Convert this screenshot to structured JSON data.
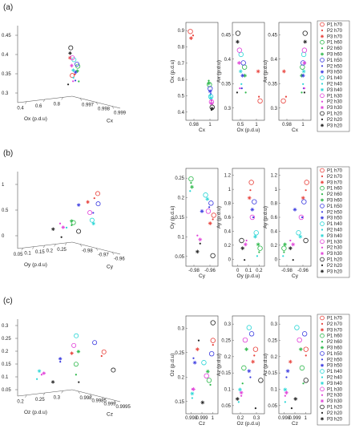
{
  "series_style": [
    {
      "name": "P1 h70",
      "color": "#e8403a",
      "marker": "circle"
    },
    {
      "name": "P2 h70",
      "color": "#e8403a",
      "marker": "dot"
    },
    {
      "name": "P3 h70",
      "color": "#e8403a",
      "marker": "star"
    },
    {
      "name": "P1 h60",
      "color": "#2db84b",
      "marker": "circle"
    },
    {
      "name": "P2 h60",
      "color": "#2db84b",
      "marker": "dot"
    },
    {
      "name": "P3 h60",
      "color": "#2db84b",
      "marker": "star"
    },
    {
      "name": "P1 h50",
      "color": "#3a3ae0",
      "marker": "circle"
    },
    {
      "name": "P2 h50",
      "color": "#3a3ae0",
      "marker": "dot"
    },
    {
      "name": "P3 h50",
      "color": "#3a3ae0",
      "marker": "star"
    },
    {
      "name": "P1 h40",
      "color": "#2ad6d6",
      "marker": "circle"
    },
    {
      "name": "P2 h40",
      "color": "#2ad6d6",
      "marker": "dot"
    },
    {
      "name": "P3 h40",
      "color": "#2ad6d6",
      "marker": "star"
    },
    {
      "name": "P1 h30",
      "color": "#e040d8",
      "marker": "circle"
    },
    {
      "name": "P2 h30",
      "color": "#e040d8",
      "marker": "dot"
    },
    {
      "name": "P3 h30",
      "color": "#e040d8",
      "marker": "star"
    },
    {
      "name": "P1 h20",
      "color": "#222222",
      "marker": "circle"
    },
    {
      "name": "P2 h20",
      "color": "#222222",
      "marker": "dot"
    },
    {
      "name": "P3 h20",
      "color": "#222222",
      "marker": "star"
    }
  ],
  "chart_data": [
    {
      "type": "scatter",
      "panel_label": "(a)",
      "title": "",
      "axes3d": {
        "axis_labels": {
          "x": "Cx",
          "y": "Ox (p.d.u)",
          "z": "Ax (p.d.u)"
        },
        "x_ticks": [
          "0.997",
          "0.998",
          "0.999"
        ],
        "y_ticks": [
          "0.4",
          "0.6",
          "0.8"
        ],
        "z_ticks": [
          "0.3",
          "0.35",
          "0.4",
          "0.45"
        ]
      },
      "projections": [
        {
          "xlabel": "Cx",
          "ylabel": "Ox (p.d.u)",
          "xlim": [
            0.9965,
            1.0005
          ],
          "ylim": [
            0.3,
            1.0
          ],
          "xticks": [
            "0.98",
            "1"
          ],
          "yticks": [
            "0.4",
            "0.5",
            "0.6",
            "0.7",
            "0.8",
            "0.9"
          ]
        },
        {
          "xlabel": "Ox (p.d.u)",
          "ylabel": "Ax (p.d.u)",
          "xlim": [
            0.3,
            1.0
          ],
          "ylim": [
            0.25,
            0.47
          ],
          "xticks": [
            "0.5",
            "1"
          ],
          "yticks": [
            "0.3",
            "0.35",
            "0.4",
            "0.45"
          ]
        },
        {
          "xlabel": "Cx",
          "ylabel": "Ax (p.d.u)",
          "xlim": [
            0.9965,
            1.0005
          ],
          "ylim": [
            0.25,
            0.47
          ],
          "xticks": [
            "0.98",
            "1"
          ],
          "yticks": [
            "0.3",
            "0.35",
            "0.4",
            "0.45"
          ]
        }
      ],
      "series": [
        {
          "name": "P1 h70",
          "x": [
            0.9968
          ],
          "y": [
            0.95
          ],
          "z": [
            0.29
          ]
        },
        {
          "name": "P2 h70",
          "x": [
            0.9972
          ],
          "y": [
            0.92
          ],
          "z": [
            0.3
          ]
        },
        {
          "name": "P3 h70",
          "x": [
            0.9969
          ],
          "y": [
            0.9
          ],
          "z": [
            0.36
          ]
        },
        {
          "name": "P1 h60",
          "x": [
            0.9996
          ],
          "y": [
            0.55
          ],
          "z": [
            0.37
          ]
        },
        {
          "name": "P2 h60",
          "x": [
            0.9995
          ],
          "y": [
            0.58
          ],
          "z": [
            0.31
          ]
        },
        {
          "name": "P3 h60",
          "x": [
            0.9995
          ],
          "y": [
            0.56
          ],
          "z": [
            0.35
          ]
        },
        {
          "name": "P1 h50",
          "x": [
            0.9997
          ],
          "y": [
            0.52
          ],
          "z": [
            0.38
          ]
        },
        {
          "name": "P2 h50",
          "x": [
            0.9998
          ],
          "y": [
            0.48
          ],
          "z": [
            0.32
          ]
        },
        {
          "name": "P3 h50",
          "x": [
            0.9997
          ],
          "y": [
            0.5
          ],
          "z": [
            0.35
          ]
        },
        {
          "name": "P1 h40",
          "x": [
            0.9998
          ],
          "y": [
            0.46
          ],
          "z": [
            0.4
          ]
        },
        {
          "name": "P2 h40",
          "x": [
            0.9997
          ],
          "y": [
            0.47
          ],
          "z": [
            0.33
          ]
        },
        {
          "name": "P3 h40",
          "x": [
            0.9998
          ],
          "y": [
            0.45
          ],
          "z": [
            0.36
          ]
        },
        {
          "name": "P1 h30",
          "x": [
            0.9999
          ],
          "y": [
            0.42
          ],
          "z": [
            0.41
          ]
        },
        {
          "name": "P2 h30",
          "x": [
            0.9999
          ],
          "y": [
            0.43
          ],
          "z": [
            0.32
          ]
        },
        {
          "name": "P3 h30",
          "x": [
            0.9999
          ],
          "y": [
            0.41
          ],
          "z": [
            0.38
          ]
        },
        {
          "name": "P1 h20",
          "x": [
            1.0
          ],
          "y": [
            0.38
          ],
          "z": [
            0.45
          ]
        },
        {
          "name": "P2 h20",
          "x": [
            0.9999
          ],
          "y": [
            0.36
          ],
          "z": [
            0.31
          ]
        },
        {
          "name": "P3 h20",
          "x": [
            1.0
          ],
          "y": [
            0.37
          ],
          "z": [
            0.43
          ]
        }
      ]
    },
    {
      "type": "scatter",
      "panel_label": "(b)",
      "title": "",
      "axes3d": {
        "axis_labels": {
          "x": "Cy",
          "y": "Oy (p.d.u)",
          "z": "Ay (p.d.u)"
        },
        "x_ticks": [
          "-0.98",
          "-0.97",
          "-0.96"
        ],
        "y_ticks": [
          "0.05",
          "0.1",
          "0.15",
          "0.2",
          "0.25"
        ],
        "z_ticks": [
          "0",
          "0.5",
          "1"
        ]
      },
      "projections": [
        {
          "xlabel": "Cy",
          "ylabel": "Oy (p.d.u)",
          "xlim": [
            -0.985,
            -0.955
          ],
          "ylim": [
            0.05,
            0.28
          ],
          "xticks": [
            "-0.98",
            "-0.96"
          ],
          "yticks": [
            "0.05",
            "0.1",
            "0.15",
            "0.2",
            "0.25"
          ]
        },
        {
          "xlabel": "Oy (p.d.u)",
          "ylabel": "Ay (p.d.u)",
          "xlim": [
            0.0,
            0.28
          ],
          "ylim": [
            0.0,
            1.2
          ],
          "xticks": [
            "0",
            "0.1",
            "0.2"
          ],
          "yticks": [
            "0",
            "0.2",
            "0.4",
            "0.6",
            "0.8",
            "1",
            "1.2"
          ]
        },
        {
          "xlabel": "Cy",
          "ylabel": "Ay (p.d.u)",
          "xlim": [
            -0.985,
            -0.955
          ],
          "ylim": [
            0.0,
            1.2
          ],
          "xticks": [
            "-0.98",
            "-0.96"
          ],
          "yticks": [
            "0",
            "0.2",
            "0.4",
            "0.6",
            "0.8",
            "1",
            "1.2"
          ]
        }
      ],
      "series": [
        {
          "name": "P1 h70",
          "x": [
            -0.957
          ],
          "y": [
            0.17
          ],
          "z": [
            1.05
          ]
        },
        {
          "name": "P2 h70",
          "x": [
            -0.958
          ],
          "y": [
            0.16
          ],
          "z": [
            0.95
          ]
        },
        {
          "name": "P3 h70",
          "x": [
            -0.961
          ],
          "y": [
            0.15
          ],
          "z": [
            0.85
          ]
        },
        {
          "name": "P1 h60",
          "x": [
            -0.982
          ],
          "y": [
            0.26
          ],
          "z": [
            0.2
          ]
        },
        {
          "name": "P2 h60",
          "x": [
            -0.982
          ],
          "y": [
            0.25
          ],
          "z": [
            0.15
          ]
        },
        {
          "name": "P3 h60",
          "x": [
            -0.981
          ],
          "y": [
            0.24
          ],
          "z": [
            0.25
          ]
        },
        {
          "name": "P1 h50",
          "x": [
            -0.96
          ],
          "y": [
            0.2
          ],
          "z": [
            0.8
          ]
        },
        {
          "name": "P2 h50",
          "x": [
            -0.962
          ],
          "y": [
            0.19
          ],
          "z": [
            0.6
          ]
        },
        {
          "name": "P3 h50",
          "x": [
            -0.97
          ],
          "y": [
            0.18
          ],
          "z": [
            0.7
          ]
        },
        {
          "name": "P1 h40",
          "x": [
            -0.966
          ],
          "y": [
            0.22
          ],
          "z": [
            0.4
          ]
        },
        {
          "name": "P2 h40",
          "x": [
            -0.983
          ],
          "y": [
            0.23
          ],
          "z": [
            0.1
          ]
        },
        {
          "name": "P3 h40",
          "x": [
            -0.964
          ],
          "y": [
            0.21
          ],
          "z": [
            0.35
          ]
        },
        {
          "name": "P1 h30",
          "x": [
            -0.963
          ],
          "y": [
            0.18
          ],
          "z": [
            0.6
          ]
        },
        {
          "name": "P2 h30",
          "x": [
            -0.975
          ],
          "y": [
            0.12
          ],
          "z": [
            0.3
          ]
        },
        {
          "name": "P3 h30",
          "x": [
            -0.972
          ],
          "y": [
            0.11
          ],
          "z": [
            0.25
          ]
        },
        {
          "name": "P1 h20",
          "x": [
            -0.958
          ],
          "y": [
            0.07
          ],
          "z": [
            0.3
          ]
        },
        {
          "name": "P2 h20",
          "x": [
            -0.972
          ],
          "y": [
            0.1
          ],
          "z": [
            0.05
          ]
        },
        {
          "name": "P3 h20",
          "x": [
            -0.975
          ],
          "y": [
            0.08
          ],
          "z": [
            0.2
          ]
        }
      ]
    },
    {
      "type": "scatter",
      "panel_label": "(c)",
      "title": "",
      "axes3d": {
        "axis_labels": {
          "x": "Cz",
          "y": "Oz (p.d.u)",
          "z": "Az (p.d.u)"
        },
        "x_ticks": [
          "0.998",
          "0.9985",
          "0.999",
          "0.9995"
        ],
        "y_ticks": [
          "0.2",
          "0.25",
          "0.3"
        ],
        "z_ticks": [
          "0.05",
          "0.1",
          "0.15",
          "0.2",
          "0.25",
          "0.3"
        ]
      },
      "projections": [
        {
          "xlabel": "Cz",
          "ylabel": "Oz (p.d.u)",
          "xlim": [
            0.9978,
            0.9999
          ],
          "ylim": [
            0.14,
            0.35
          ],
          "xticks": [
            "0.998",
            "0.999",
            "1"
          ],
          "yticks": [
            "0.15",
            "0.2",
            "0.25",
            "0.3"
          ]
        },
        {
          "xlabel": "Oz (p.d.u)",
          "ylabel": "Az (p.d.u)",
          "xlim": [
            0.14,
            0.35
          ],
          "ylim": [
            0.05,
            0.35
          ],
          "xticks": [
            "0.2",
            "0.3"
          ],
          "yticks": [
            "0.05",
            "0.1",
            "0.15",
            "0.2",
            "0.25",
            "0.3"
          ]
        },
        {
          "xlabel": "Cz",
          "ylabel": "Az (p.d.u)",
          "xlim": [
            0.9978,
            0.9999
          ],
          "ylim": [
            0.05,
            0.35
          ],
          "xticks": [
            "0.998",
            "0.999",
            "1"
          ],
          "yticks": [
            "0.05",
            "0.1",
            "0.15",
            "0.2",
            "0.25",
            "0.3"
          ]
        }
      ],
      "series": [
        {
          "name": "P1 h70",
          "x": [
            0.9997
          ],
          "y": [
            0.3
          ],
          "z": [
            0.25
          ]
        },
        {
          "name": "P2 h70",
          "x": [
            0.9997
          ],
          "y": [
            0.29
          ],
          "z": [
            0.23
          ]
        },
        {
          "name": "P3 h70",
          "x": [
            0.9985
          ],
          "y": [
            0.28
          ],
          "z": [
            0.21
          ]
        },
        {
          "name": "P1 h60",
          "x": [
            0.9994
          ],
          "y": [
            0.21
          ],
          "z": [
            0.19
          ]
        },
        {
          "name": "P2 h60",
          "x": [
            0.9995
          ],
          "y": [
            0.2
          ],
          "z": [
            0.14
          ]
        },
        {
          "name": "P3 h60",
          "x": [
            0.9993
          ],
          "y": [
            0.23
          ],
          "z": [
            0.25
          ]
        },
        {
          "name": "P1 h50",
          "x": [
            0.9996
          ],
          "y": [
            0.27
          ],
          "z": [
            0.3
          ]
        },
        {
          "name": "P2 h50",
          "x": [
            0.9982
          ],
          "y": [
            0.26
          ],
          "z": [
            0.16
          ]
        },
        {
          "name": "P3 h50",
          "x": [
            0.9983
          ],
          "y": [
            0.25
          ],
          "z": [
            0.18
          ]
        },
        {
          "name": "P1 h40",
          "x": [
            0.999
          ],
          "y": [
            0.25
          ],
          "z": [
            0.32
          ]
        },
        {
          "name": "P2 h40",
          "x": [
            0.9981
          ],
          "y": [
            0.17
          ],
          "z": [
            0.08
          ]
        },
        {
          "name": "P3 h40",
          "x": [
            0.9981
          ],
          "y": [
            0.18
          ],
          "z": [
            0.12
          ]
        },
        {
          "name": "P1 h30",
          "x": [
            0.9992
          ],
          "y": [
            0.22
          ],
          "z": [
            0.28
          ]
        },
        {
          "name": "P2 h30",
          "x": [
            0.9981
          ],
          "y": [
            0.19
          ],
          "z": [
            0.1
          ]
        },
        {
          "name": "P3 h30",
          "x": [
            0.9982
          ],
          "y": [
            0.19
          ],
          "z": [
            0.11
          ]
        },
        {
          "name": "P1 h20",
          "x": [
            0.9997
          ],
          "y": [
            0.34
          ],
          "z": [
            0.15
          ]
        },
        {
          "name": "P2 h20",
          "x": [
            0.9986
          ],
          "y": [
            0.3
          ],
          "z": [
            0.06
          ]
        },
        {
          "name": "P3 h20",
          "x": [
            0.9989
          ],
          "y": [
            0.16
          ],
          "z": [
            0.09
          ]
        }
      ]
    }
  ]
}
